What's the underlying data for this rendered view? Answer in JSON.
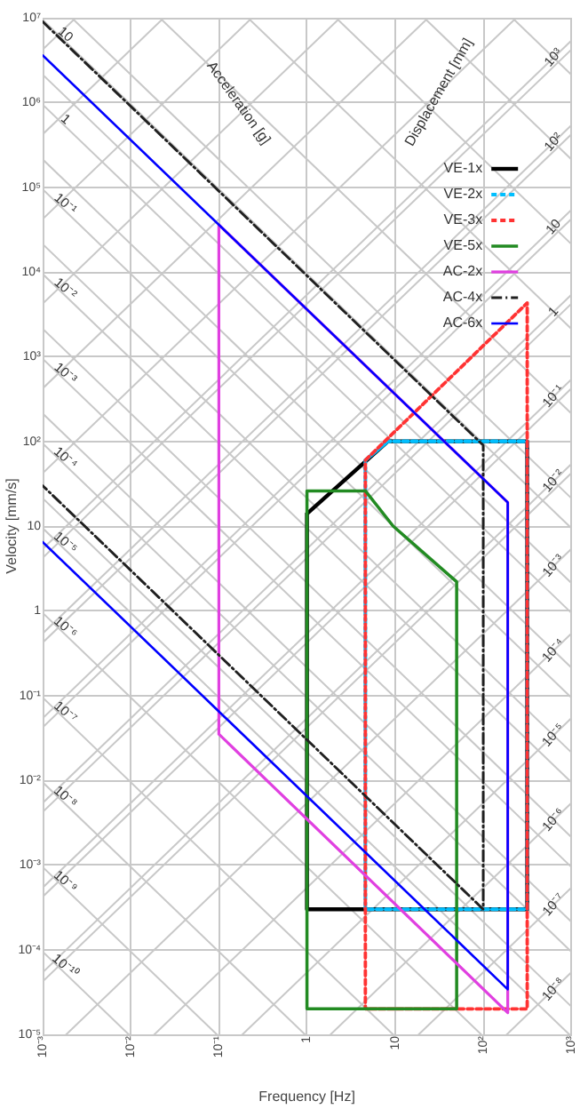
{
  "chart_data": {
    "type": "line",
    "xlabel": "Frequency [Hz]",
    "ylabel": "Velocity [mm/s]",
    "log": "xy",
    "grid": true,
    "legend": "right",
    "marker": "none",
    "xlim": [
      0.001,
      1000
    ],
    "ylim": [
      1e-05,
      10000000
    ],
    "xticks": [
      {
        "value": 0.001,
        "label": "10⁻³"
      },
      {
        "value": 0.01,
        "label": "10⁻²"
      },
      {
        "value": 0.1,
        "label": "10⁻¹"
      },
      1,
      10,
      {
        "value": 100,
        "label": "10²"
      },
      {
        "value": 1000,
        "label": "10³"
      }
    ],
    "yticks": [
      {
        "value": 1e-05,
        "label": "10⁻⁵"
      },
      {
        "value": 0.0001,
        "label": "10⁻⁴"
      },
      {
        "value": 0.001,
        "label": "10⁻³"
      },
      {
        "value": 0.01,
        "label": "10⁻²"
      },
      {
        "value": 0.1,
        "label": "10⁻¹"
      },
      1,
      10,
      {
        "value": 100,
        "label": "10²"
      },
      {
        "value": 1000,
        "label": "10³"
      },
      {
        "value": 10000,
        "label": "10⁴"
      },
      {
        "value": 100000,
        "label": "10⁵"
      },
      {
        "value": 1000000,
        "label": "10⁶"
      },
      {
        "value": 10000000,
        "label": "10⁷"
      }
    ],
    "series": [
      {
        "name": "VE-1x",
        "color": "#000000",
        "line_style": "solid",
        "x": [
          1,
          8.3,
          316,
          316,
          1,
          1,
          8.3
        ],
        "values": [
          14,
          100,
          100,
          0.0003,
          0.0003,
          14,
          100
        ]
      },
      {
        "name": "VE-2x",
        "color": "#00bfff",
        "line_style": "dashed",
        "x": [
          4.6,
          8.3,
          316,
          316,
          4.6,
          4.6,
          8.3
        ],
        "values": [
          60,
          100,
          100,
          0.0003,
          0.0003,
          60,
          100
        ]
      },
      {
        "name": "VE-3x",
        "color": "#ff3333",
        "line_style": "dashed",
        "x": [
          50,
          4.6,
          4.6,
          316,
          316,
          4.6
        ],
        "values": [
          2e-05,
          2e-05,
          60,
          4300,
          2e-05,
          2e-05
        ]
      },
      {
        "name": "VE-5x",
        "color": "#228b22",
        "line_style": "solid",
        "x": [
          1,
          1,
          4.6,
          9.5,
          50,
          50,
          1,
          1
        ],
        "values": [
          2e-05,
          26,
          26,
          10,
          2.2,
          2e-05,
          2e-05,
          26
        ]
      },
      {
        "name": "AC-2x",
        "color": "#e040e0",
        "line_style": "solid",
        "x": [
          0.1,
          0.1,
          190,
          190,
          0.1,
          0.1
        ],
        "values": [
          36000,
          0.035,
          1.8e-05,
          19,
          36000,
          0.035
        ]
      },
      {
        "name": "AC-4x",
        "color": "#202020",
        "line_style": "dashdot",
        "x": [
          0.001,
          100,
          100,
          0.001
        ],
        "values": [
          9000000,
          90,
          0.0003,
          30
        ]
      },
      {
        "name": "AC-6x",
        "color": "#0000ff",
        "line_style": "solid",
        "x": [
          0.001,
          190,
          190,
          0.001
        ],
        "values": [
          3600000,
          19,
          3.4e-05,
          6.5
        ]
      }
    ],
    "annotations": [
      "Acceleration [g]",
      "Displacement [mm]",
      "10",
      "1",
      "10⁻¹",
      "10⁻²",
      "10⁻³",
      "10⁻⁴",
      "10⁻⁵",
      "10⁻⁶",
      "10⁻⁷",
      "10⁻⁸",
      "10⁻⁹",
      "10⁻¹⁰",
      "10³",
      "10²",
      "10",
      "1",
      "10⁻¹",
      "10⁻²",
      "10⁻³",
      "10⁻⁴",
      "10⁻⁵",
      "10⁻⁶",
      "10⁻⁷",
      "10⁻⁸"
    ]
  }
}
